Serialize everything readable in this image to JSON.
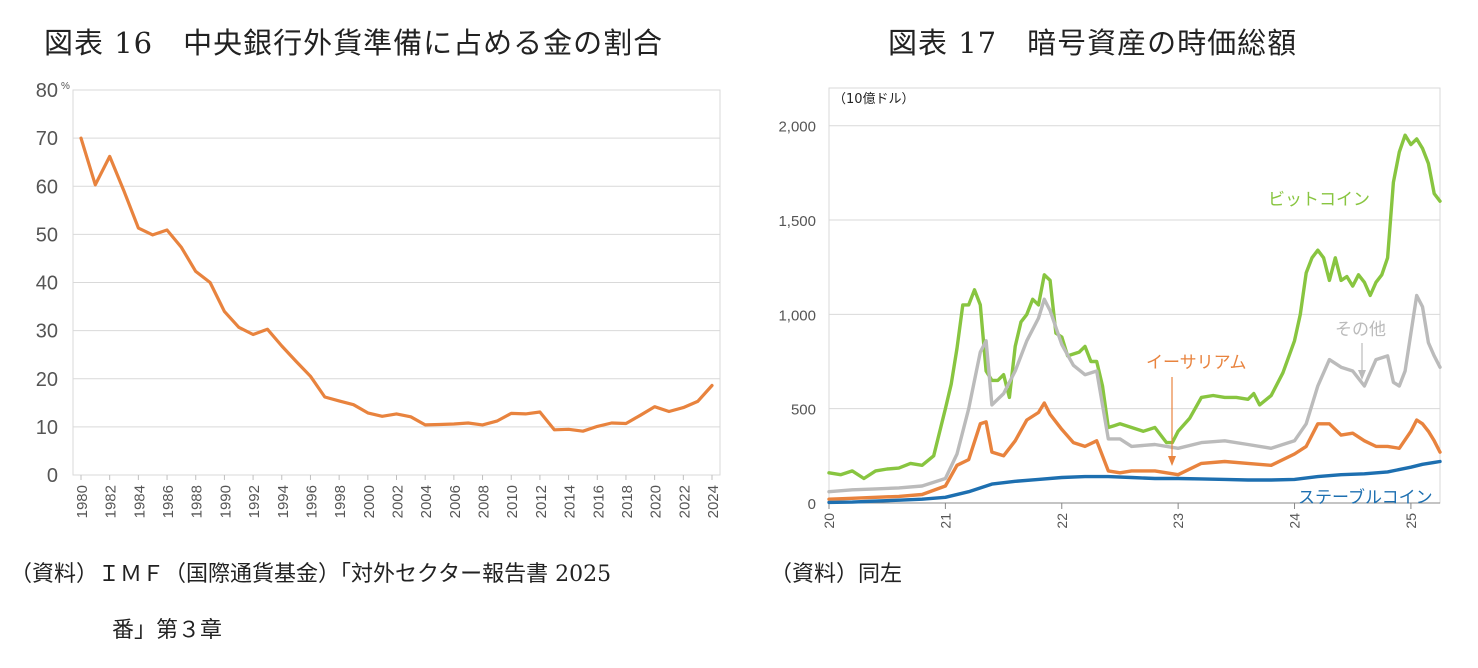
{
  "chart_data": [
    {
      "type": "line",
      "title": "図表 16　中央銀行外貨準備に占める金の割合",
      "ylabel": "%",
      "ylim": [
        0,
        80
      ],
      "yticks": [
        0,
        10,
        20,
        30,
        40,
        50,
        60,
        70,
        80
      ],
      "grid": true,
      "line_color": "#E8833E",
      "x": [
        1980,
        1981,
        1982,
        1983,
        1984,
        1985,
        1986,
        1987,
        1988,
        1989,
        1990,
        1991,
        1992,
        1993,
        1994,
        1995,
        1996,
        1997,
        1998,
        1999,
        2000,
        2001,
        2002,
        2003,
        2004,
        2005,
        2006,
        2007,
        2008,
        2009,
        2010,
        2011,
        2012,
        2013,
        2014,
        2015,
        2016,
        2017,
        2018,
        2019,
        2020,
        2021,
        2022,
        2023,
        2024
      ],
      "values": [
        70,
        60.3,
        66.2,
        59,
        51.3,
        49.9,
        50.9,
        47.3,
        42.3,
        40,
        34,
        30.7,
        29.2,
        30.3,
        26.8,
        23.6,
        20.5,
        16.2,
        15.4,
        14.6,
        12.9,
        12.2,
        12.7,
        12.1,
        10.4,
        10.5,
        10.6,
        10.8,
        10.4,
        11.2,
        12.8,
        12.7,
        13.1,
        9.4,
        9.5,
        9.1,
        10.1,
        10.8,
        10.7,
        12.4,
        14.2,
        13.2,
        14,
        15.3,
        18.6
      ],
      "xticks": [
        "1980",
        "1982",
        "1984",
        "1986",
        "1988",
        "1990",
        "1992",
        "1994",
        "1996",
        "1998",
        "2000",
        "2002",
        "2004",
        "2006",
        "2008",
        "2010",
        "2012",
        "2014",
        "2016",
        "2018",
        "2020",
        "2022",
        "2024"
      ],
      "source_line1": "（資料）ＩＭＦ（国際通貨基金）「対外セクター報告書 2025",
      "source_line2": "番」第３章"
    },
    {
      "type": "line",
      "title": "図表 17　暗号資産の時価総額",
      "ylabel": "（10億ドル）",
      "ylim": [
        0,
        2200
      ],
      "yticks": [
        0,
        500,
        1000,
        1500,
        2000
      ],
      "ytick_labels": [
        "0",
        "500",
        "1,000",
        "1,500",
        "2,000"
      ],
      "xlim": [
        20,
        25.25
      ],
      "xticks": [
        "20",
        "21",
        "22",
        "23",
        "24",
        "25"
      ],
      "grid": true,
      "series": [
        {
          "name": "ビットコイン",
          "color": "#88C540",
          "x": [
            20,
            20.1,
            20.2,
            20.3,
            20.4,
            20.5,
            20.6,
            20.7,
            20.8,
            20.9,
            21,
            21.05,
            21.1,
            21.15,
            21.2,
            21.25,
            21.3,
            21.35,
            21.4,
            21.45,
            21.5,
            21.55,
            21.6,
            21.65,
            21.7,
            21.75,
            21.8,
            21.85,
            21.9,
            21.95,
            22,
            22.05,
            22.1,
            22.15,
            22.2,
            22.25,
            22.3,
            22.35,
            22.4,
            22.45,
            22.5,
            22.6,
            22.7,
            22.8,
            22.9,
            22.95,
            23,
            23.1,
            23.2,
            23.3,
            23.4,
            23.5,
            23.6,
            23.65,
            23.7,
            23.8,
            23.9,
            24,
            24.05,
            24.1,
            24.15,
            24.2,
            24.25,
            24.3,
            24.35,
            24.4,
            24.45,
            24.5,
            24.55,
            24.6,
            24.65,
            24.7,
            24.75,
            24.8,
            24.85,
            24.9,
            24.95,
            25,
            25.05,
            25.1,
            25.15,
            25.2,
            25.25
          ],
          "values": [
            160,
            150,
            170,
            130,
            170,
            180,
            185,
            210,
            200,
            250,
            500,
            630,
            820,
            1050,
            1050,
            1130,
            1050,
            700,
            650,
            650,
            680,
            560,
            830,
            960,
            1000,
            1080,
            1050,
            1210,
            1180,
            900,
            880,
            780,
            790,
            800,
            830,
            750,
            750,
            620,
            400,
            410,
            420,
            400,
            380,
            400,
            320,
            320,
            380,
            450,
            560,
            570,
            560,
            560,
            550,
            580,
            520,
            570,
            690,
            860,
            1000,
            1220,
            1300,
            1340,
            1300,
            1180,
            1300,
            1180,
            1200,
            1150,
            1210,
            1170,
            1100,
            1170,
            1210,
            1300,
            1700,
            1860,
            1950,
            1900,
            1930,
            1880,
            1800,
            1640,
            1600
          ]
        },
        {
          "name": "その他",
          "color": "#BBBBBB",
          "x": [
            20,
            20.2,
            20.4,
            20.6,
            20.8,
            21,
            21.1,
            21.2,
            21.3,
            21.35,
            21.4,
            21.5,
            21.6,
            21.7,
            21.8,
            21.85,
            21.9,
            22,
            22.1,
            22.2,
            22.3,
            22.4,
            22.5,
            22.6,
            22.8,
            23,
            23.2,
            23.4,
            23.6,
            23.8,
            24,
            24.1,
            24.2,
            24.3,
            24.4,
            24.5,
            24.6,
            24.7,
            24.8,
            24.85,
            24.9,
            24.95,
            25,
            25.05,
            25.1,
            25.15,
            25.2,
            25.25
          ],
          "values": [
            60,
            70,
            75,
            80,
            90,
            130,
            260,
            500,
            800,
            860,
            520,
            580,
            700,
            860,
            980,
            1080,
            1020,
            840,
            730,
            680,
            700,
            340,
            340,
            300,
            310,
            290,
            320,
            330,
            310,
            290,
            330,
            420,
            620,
            760,
            720,
            700,
            620,
            760,
            780,
            640,
            620,
            700,
            900,
            1100,
            1040,
            850,
            780,
            720
          ]
        },
        {
          "name": "イーサリアム",
          "color": "#E8833E",
          "x": [
            20,
            20.2,
            20.4,
            20.6,
            20.8,
            21,
            21.1,
            21.2,
            21.3,
            21.35,
            21.4,
            21.5,
            21.6,
            21.7,
            21.8,
            21.85,
            21.9,
            22,
            22.1,
            22.2,
            22.3,
            22.4,
            22.5,
            22.6,
            22.8,
            23,
            23.2,
            23.4,
            23.6,
            23.8,
            24,
            24.1,
            24.2,
            24.3,
            24.4,
            24.5,
            24.6,
            24.7,
            24.8,
            24.9,
            25,
            25.05,
            25.1,
            25.15,
            25.2,
            25.25
          ],
          "values": [
            20,
            25,
            30,
            35,
            45,
            90,
            200,
            230,
            420,
            430,
            270,
            250,
            330,
            440,
            480,
            530,
            470,
            390,
            320,
            300,
            330,
            170,
            160,
            170,
            170,
            150,
            210,
            220,
            210,
            200,
            260,
            300,
            420,
            420,
            360,
            370,
            330,
            300,
            300,
            290,
            380,
            440,
            420,
            380,
            330,
            270
          ]
        },
        {
          "name": "ステーブルコイン",
          "color": "#1D6FB0",
          "x": [
            20,
            20.2,
            20.4,
            20.6,
            20.8,
            21,
            21.2,
            21.4,
            21.6,
            21.8,
            22,
            22.2,
            22.4,
            22.6,
            22.8,
            23,
            23.2,
            23.4,
            23.6,
            23.8,
            24,
            24.2,
            24.4,
            24.6,
            24.8,
            25,
            25.1,
            25.2,
            25.25
          ],
          "values": [
            3,
            5,
            10,
            15,
            20,
            30,
            60,
            100,
            115,
            125,
            135,
            140,
            140,
            135,
            130,
            130,
            128,
            125,
            122,
            122,
            125,
            140,
            150,
            155,
            165,
            190,
            205,
            215,
            220
          ]
        }
      ],
      "source_line1": "（資料）同左"
    }
  ]
}
